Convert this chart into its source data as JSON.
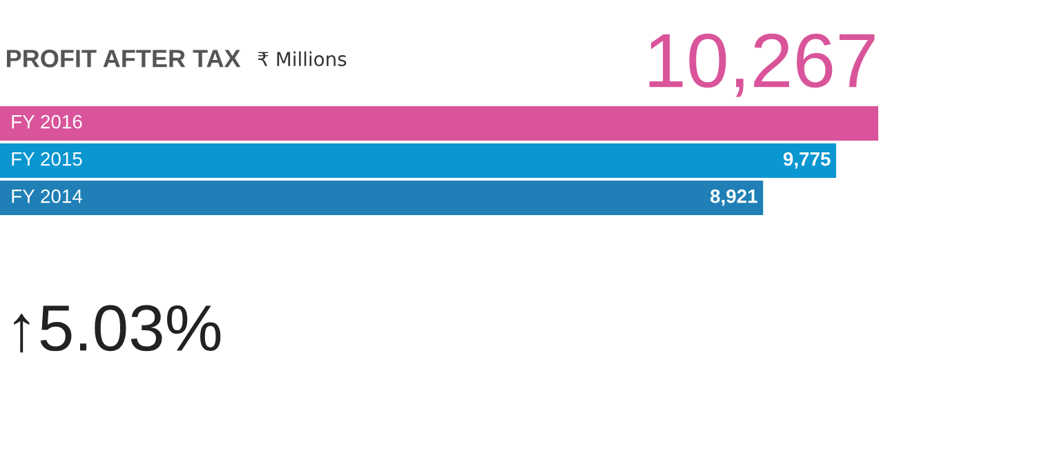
{
  "chart_data": {
    "type": "bar",
    "orientation": "horizontal",
    "title": "PROFIT AFTER TAX",
    "subtitle": "₹ Millions",
    "categories": [
      "FY 2016",
      "FY 2015",
      "FY 2014"
    ],
    "values": [
      10267,
      9775,
      8921
    ],
    "colors": [
      "#d9549a",
      "#0a96d0",
      "#1f7fb6"
    ],
    "value_labels": [
      "10,267",
      "9,775",
      "8,921"
    ],
    "annotations": [
      "↑5.03%"
    ],
    "legend": false
  }
}
